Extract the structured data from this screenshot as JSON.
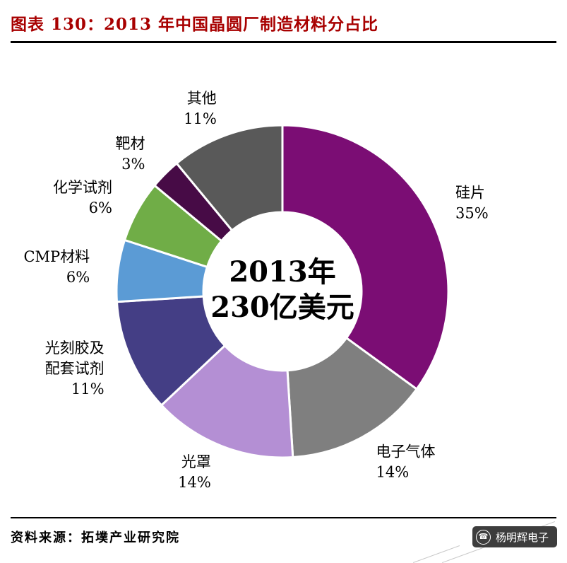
{
  "header": {
    "title": "图表 130：2013 年中国晶圆厂制造材料分占比"
  },
  "footer": {
    "source": "资料来源：拓墣产业研究院",
    "watermark": "杨明辉电子"
  },
  "chart_data": {
    "type": "pie",
    "variant": "donut",
    "title": "2013 年中国晶圆厂制造材料分占比",
    "unit": "%",
    "start_angle_deg": 0,
    "direction": "clockwise",
    "center_lines": [
      "2013年",
      "230亿美元"
    ],
    "segments": [
      {
        "label": "硅片",
        "label_lines": [
          "硅片"
        ],
        "value": 35,
        "color": "#7B0D74"
      },
      {
        "label": "电子气体",
        "label_lines": [
          "电子气体"
        ],
        "value": 14,
        "color": "#7F7F7F"
      },
      {
        "label": "光罩",
        "label_lines": [
          "光罩"
        ],
        "value": 14,
        "color": "#B48FD4"
      },
      {
        "label": "光刻胶及配套试剂",
        "label_lines": [
          "光刻胶及",
          "配套试剂"
        ],
        "value": 11,
        "color": "#443E85"
      },
      {
        "label": "CMP材料",
        "label_lines": [
          "CMP材料"
        ],
        "value": 6,
        "color": "#5B9BD5"
      },
      {
        "label": "化学试剂",
        "label_lines": [
          "化学试剂"
        ],
        "value": 6,
        "color": "#70AD47"
      },
      {
        "label": "靶材",
        "label_lines": [
          "靶材"
        ],
        "value": 3,
        "color": "#470B46"
      },
      {
        "label": "其他",
        "label_lines": [
          "其他"
        ],
        "value": 11,
        "color": "#595959"
      }
    ]
  }
}
